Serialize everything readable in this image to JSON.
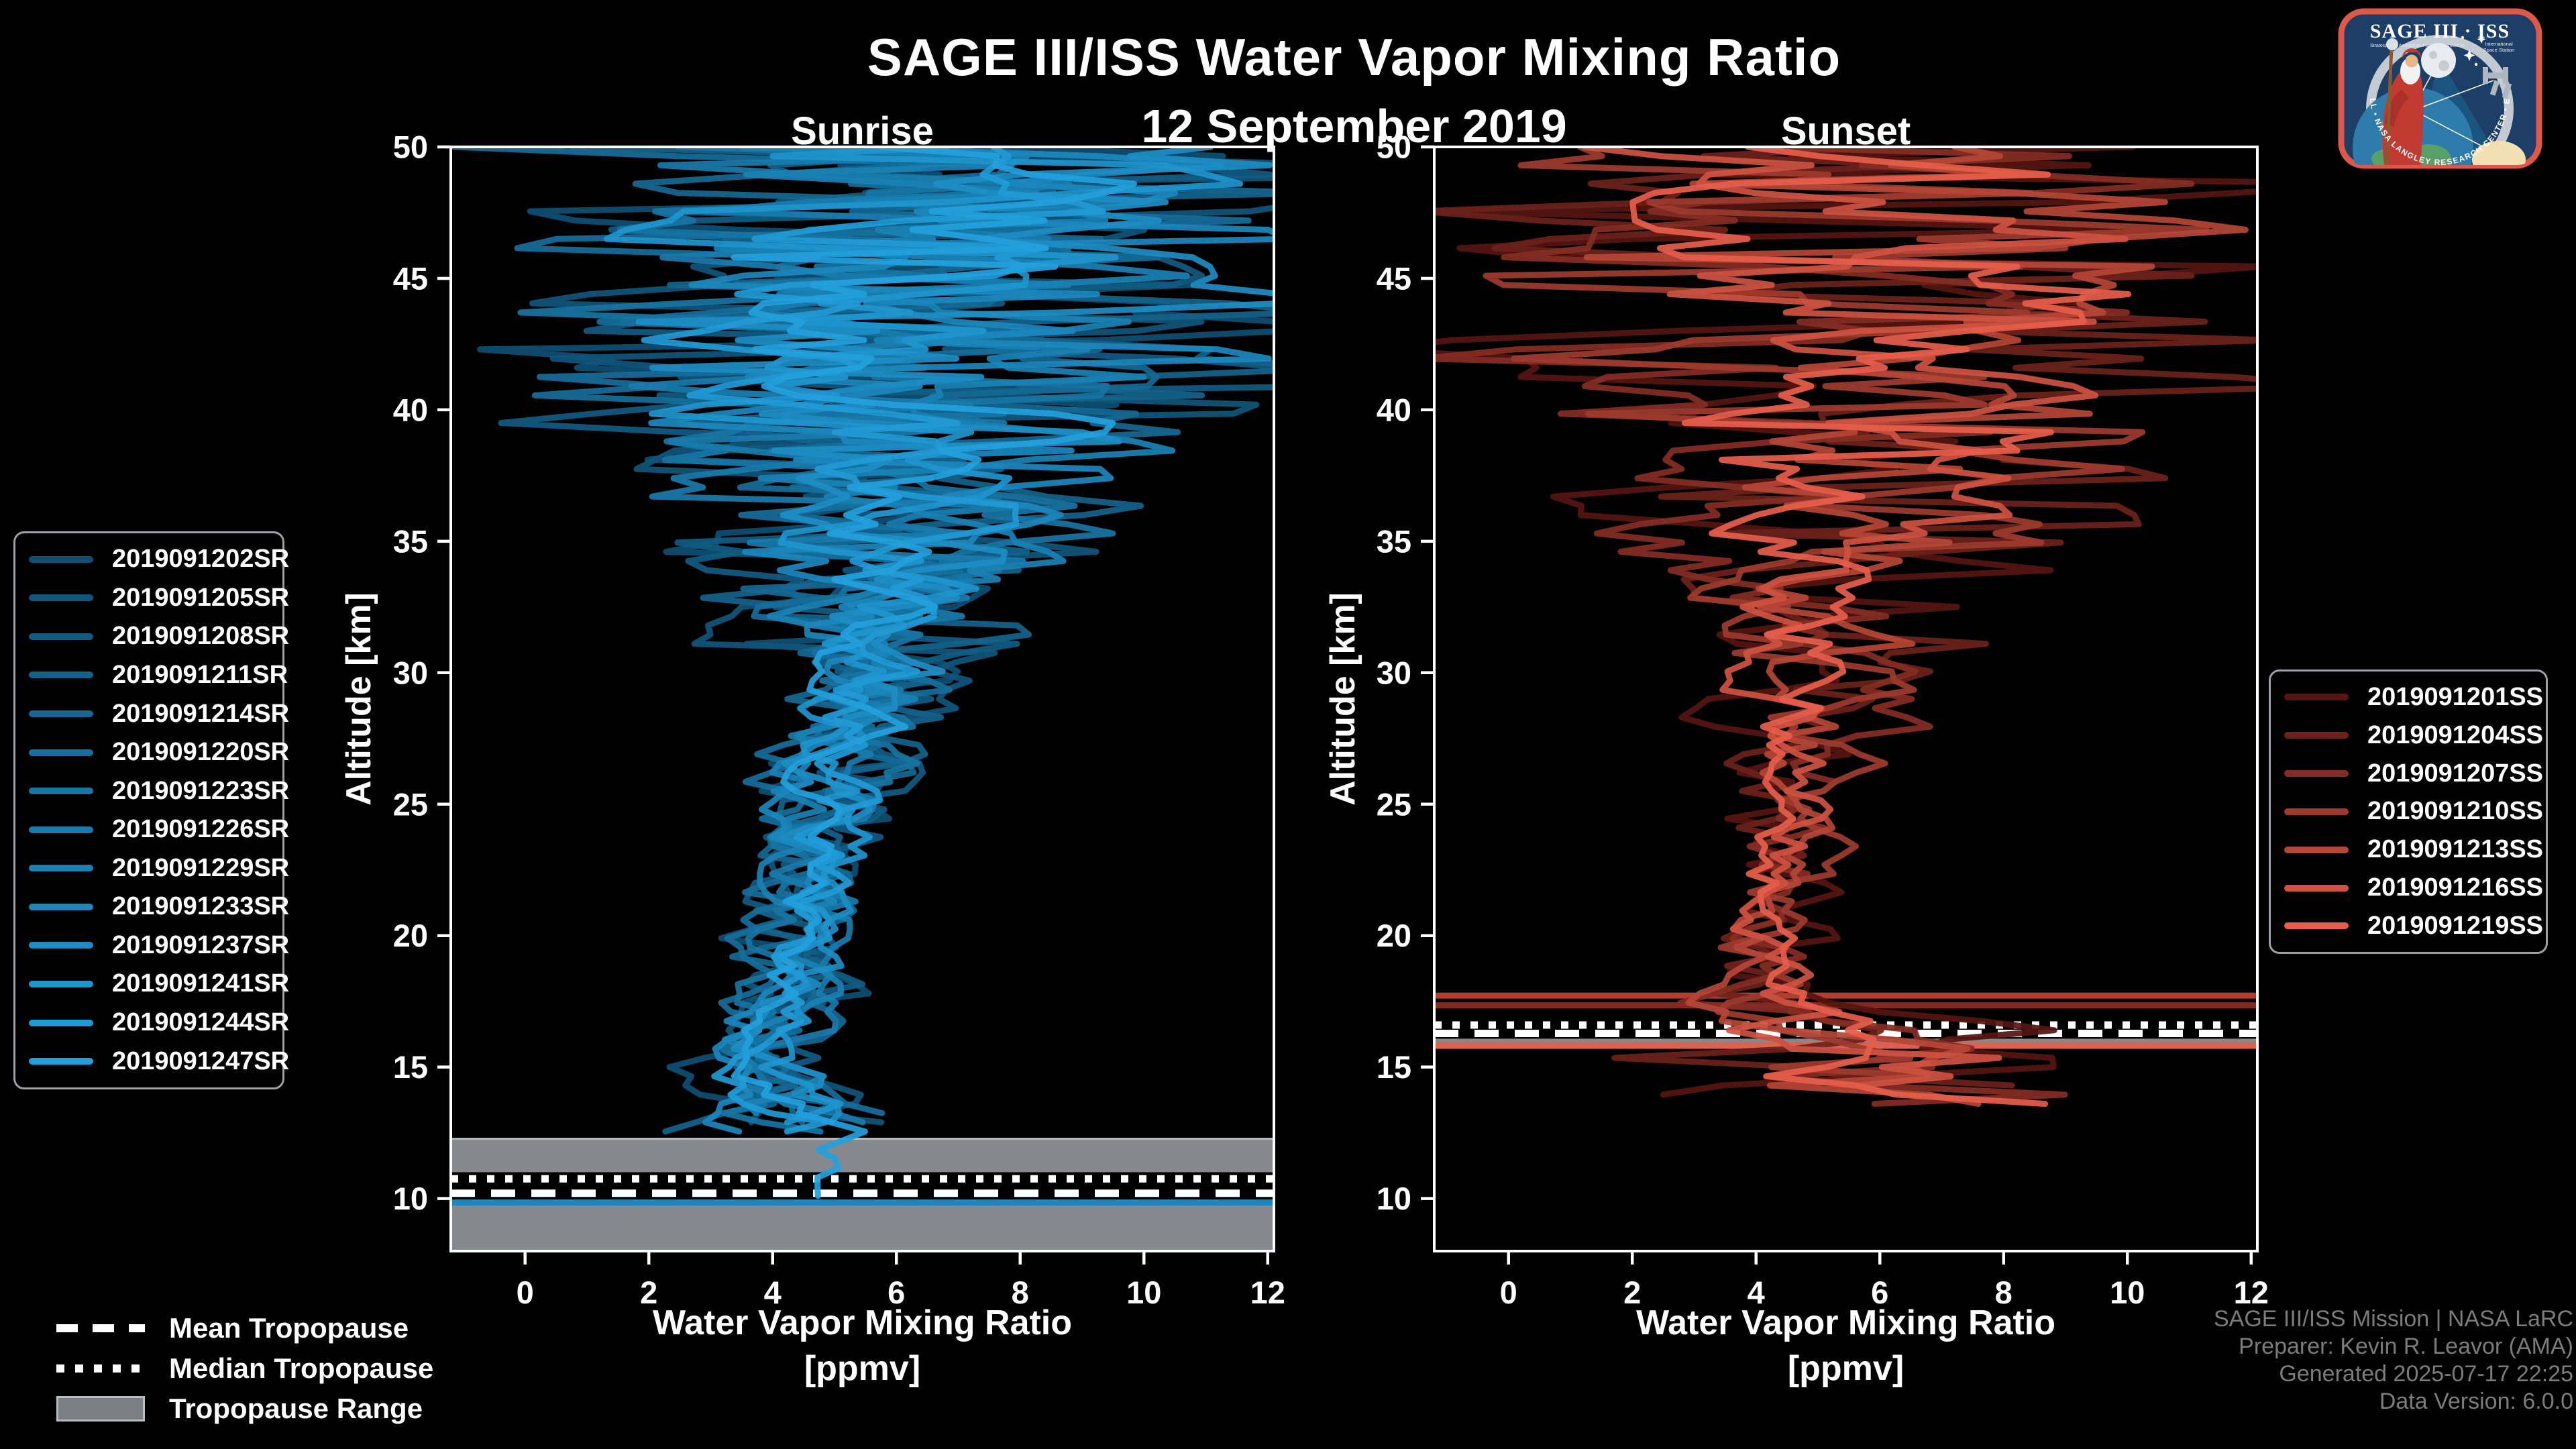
{
  "header": {
    "title": "SAGE III/ISS Water Vapor Mixing Ratio",
    "date": "12 September 2019"
  },
  "colors": {
    "background": "#000000",
    "text": "#ffffff",
    "credits_text": "#7c7c7c",
    "tropopause_band": "#85888c",
    "tropopause_band_edge": "#b9bcc0",
    "spine": "#ffffff",
    "sunrise_palette_start": "#0e4f72",
    "sunrise_palette_end": "#22a0dd",
    "sunset_palette_start": "#551511",
    "sunset_palette_end": "#e65e4a"
  },
  "tropopause_legend": {
    "mean_label": "Mean Tropopause",
    "median_label": "Median Tropopause",
    "range_label": "Tropopause Range"
  },
  "credits": {
    "line1": "SAGE III/ISS Mission | NASA LaRC",
    "line2": "Preparer: Kevin R. Leavor (AMA)",
    "line3": "Generated 2025-07-17 22:25",
    "line4": "Data Version: 6.0.0"
  },
  "logo": {
    "title": "SAGE III · ISS",
    "subtitle_left": "Stratospheric Aerosol and Gas Experiment III",
    "subtitle_right1": "International",
    "subtitle_right2": "Space Station",
    "ring_text": "BALL • NASA LANGLEY RESEARCH CENTER • ESA"
  },
  "chart_data": [
    {
      "type": "line",
      "title": "Sunrise",
      "xlabel_line1": "Water Vapor Mixing Ratio",
      "xlabel_line2": "[ppmv]",
      "ylabel": "Altitude [km]",
      "xlim": [
        -1.2,
        12.1
      ],
      "ylim": [
        8,
        50
      ],
      "xticks": [
        0,
        2,
        4,
        6,
        8,
        10,
        12
      ],
      "yticks": [
        10,
        15,
        20,
        25,
        30,
        35,
        40,
        45,
        50
      ],
      "grid": false,
      "legend_position": "outside-left",
      "palette": {
        "start": "#0e4f72",
        "end": "#22a0dd"
      },
      "noise_seed": 11,
      "step_km": 0.35,
      "series": [
        {
          "name": "2019091202SR",
          "min_alt": 12.9,
          "spread_scale": 1.3
        },
        {
          "name": "2019091205SR",
          "min_alt": 12.6,
          "spread_scale": 1.25
        },
        {
          "name": "2019091208SR",
          "min_alt": 13.2,
          "spread_scale": 1.2
        },
        {
          "name": "2019091211SR",
          "min_alt": 12.4,
          "spread_scale": 1.15
        },
        {
          "name": "2019091214SR",
          "min_alt": 12.8,
          "spread_scale": 1.1
        },
        {
          "name": "2019091220SR",
          "min_alt": 13.0,
          "spread_scale": 1.05
        },
        {
          "name": "2019091223SR",
          "min_alt": 12.5,
          "spread_scale": 1.0
        },
        {
          "name": "2019091226SR",
          "min_alt": 12.7,
          "spread_scale": 0.95
        },
        {
          "name": "2019091229SR",
          "min_alt": 13.1,
          "spread_scale": 0.9
        },
        {
          "name": "2019091233SR",
          "min_alt": 12.3,
          "spread_scale": 0.85
        },
        {
          "name": "2019091237SR",
          "min_alt": 12.6,
          "spread_scale": 0.8
        },
        {
          "name": "2019091241SR",
          "min_alt": 12.9,
          "spread_scale": 0.72
        },
        {
          "name": "2019091244SR",
          "min_alt": 12.4,
          "spread_scale": 0.66
        },
        {
          "name": "2019091247SR",
          "min_alt": 9.8,
          "spread_scale": 0.6
        }
      ],
      "profile_anchors_alt_mean_spread": [
        [
          8.0,
          4.9,
          0.4
        ],
        [
          9.8,
          4.9,
          0.6
        ],
        [
          11.5,
          4.7,
          1.1
        ],
        [
          12.6,
          4.6,
          1.8
        ],
        [
          13.5,
          4.1,
          1.5
        ],
        [
          15.0,
          3.7,
          1.1
        ],
        [
          17.0,
          4.0,
          0.95
        ],
        [
          20.0,
          4.35,
          1.05
        ],
        [
          23.0,
          4.7,
          1.2
        ],
        [
          26.0,
          5.0,
          1.35
        ],
        [
          29.0,
          5.3,
          1.6
        ],
        [
          32.0,
          5.6,
          2.1
        ],
        [
          35.0,
          5.9,
          3.0
        ],
        [
          38.0,
          6.1,
          4.1
        ],
        [
          41.0,
          6.2,
          5.6
        ],
        [
          44.0,
          6.3,
          6.6
        ],
        [
          47.0,
          6.4,
          7.2
        ],
        [
          50.0,
          6.4,
          7.2
        ]
      ],
      "tropopause": {
        "range_top_km": 12.27,
        "range_bottom_km": 8.0,
        "casing_top_km": 11.0,
        "casing_bottom_km": 9.95,
        "mean_km": 10.2,
        "median_km": 10.75
      },
      "flat_lines": [
        {
          "alt_km": 9.85,
          "color": "#1a86c2",
          "width": 9
        }
      ]
    },
    {
      "type": "line",
      "title": "Sunset",
      "xlabel_line1": "Water Vapor Mixing Ratio",
      "xlabel_line2": "[ppmv]",
      "ylabel": "Altitude [km]",
      "xlim": [
        -1.2,
        12.1
      ],
      "ylim": [
        8,
        50
      ],
      "xticks": [
        0,
        2,
        4,
        6,
        8,
        10,
        12
      ],
      "yticks": [
        10,
        15,
        20,
        25,
        30,
        35,
        40,
        45,
        50
      ],
      "grid": false,
      "legend_position": "outside-right",
      "palette": {
        "start": "#551511",
        "end": "#e65e4a"
      },
      "noise_seed": 77,
      "step_km": 0.35,
      "series": [
        {
          "name": "2019091201SS",
          "min_alt": 13.9,
          "spread_scale": 1.35
        },
        {
          "name": "2019091204SS",
          "min_alt": 14.3,
          "spread_scale": 1.25
        },
        {
          "name": "2019091207SS",
          "min_alt": 13.6,
          "spread_scale": 1.15
        },
        {
          "name": "2019091210SS",
          "min_alt": 14.6,
          "spread_scale": 1.05
        },
        {
          "name": "2019091213SS",
          "min_alt": 13.4,
          "spread_scale": 0.9
        },
        {
          "name": "2019091216SS",
          "min_alt": 14.1,
          "spread_scale": 0.75
        },
        {
          "name": "2019091219SS",
          "min_alt": 13.5,
          "spread_scale": 0.62
        }
      ],
      "profile_anchors_alt_mean_spread": [
        [
          13.4,
          5.6,
          5.0
        ],
        [
          14.5,
          5.4,
          4.4
        ],
        [
          15.5,
          5.2,
          3.6
        ],
        [
          16.5,
          4.9,
          2.6
        ],
        [
          17.5,
          4.6,
          1.6
        ],
        [
          19.0,
          4.3,
          1.1
        ],
        [
          21.0,
          4.3,
          1.0
        ],
        [
          24.0,
          4.5,
          1.1
        ],
        [
          27.0,
          4.7,
          1.4
        ],
        [
          30.0,
          5.0,
          1.8
        ],
        [
          33.0,
          5.2,
          2.4
        ],
        [
          36.0,
          5.5,
          3.4
        ],
        [
          39.0,
          5.8,
          4.6
        ],
        [
          42.0,
          6.0,
          5.6
        ],
        [
          45.0,
          6.1,
          6.8
        ],
        [
          50.0,
          6.2,
          7.0
        ]
      ],
      "tropopause": {
        "range_top_km": 16.75,
        "range_bottom_km": 15.7,
        "casing_top_km": 16.82,
        "casing_bottom_km": 16.08,
        "mean_km": 16.28,
        "median_km": 16.6
      },
      "flat_lines": [
        {
          "alt_km": 15.82,
          "color": "#e0604e",
          "width": 10
        },
        {
          "alt_km": 17.35,
          "color": "#8c2d24",
          "width": 9
        },
        {
          "alt_km": 17.72,
          "color": "#b94434",
          "width": 9
        }
      ]
    }
  ]
}
